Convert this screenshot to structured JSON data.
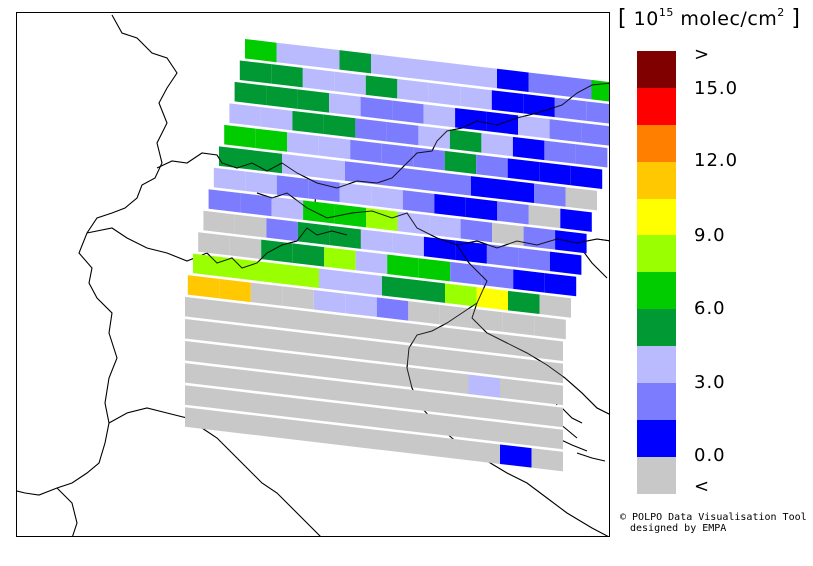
{
  "units": {
    "bracket_open": "[",
    "base": "10",
    "exponent": "15",
    "unit": "molec/cm",
    "square": "2",
    "bracket_close": "]"
  },
  "legend": {
    "colors": [
      "#800000",
      "#ff0000",
      "#ff7f00",
      "#ffc800",
      "#ffff00",
      "#9aff00",
      "#00cc00",
      "#009933",
      "#babaff",
      "#7c7cff",
      "#0000ff",
      "#c8c8c8"
    ],
    "labels": [
      ">",
      "15.0",
      "12.0",
      "9.0",
      "6.0",
      "3.0",
      "0.0",
      "<"
    ]
  },
  "credit": {
    "line1": "© POLPO Data Visualisation Tool",
    "line2": "designed by EMPA"
  }
}
